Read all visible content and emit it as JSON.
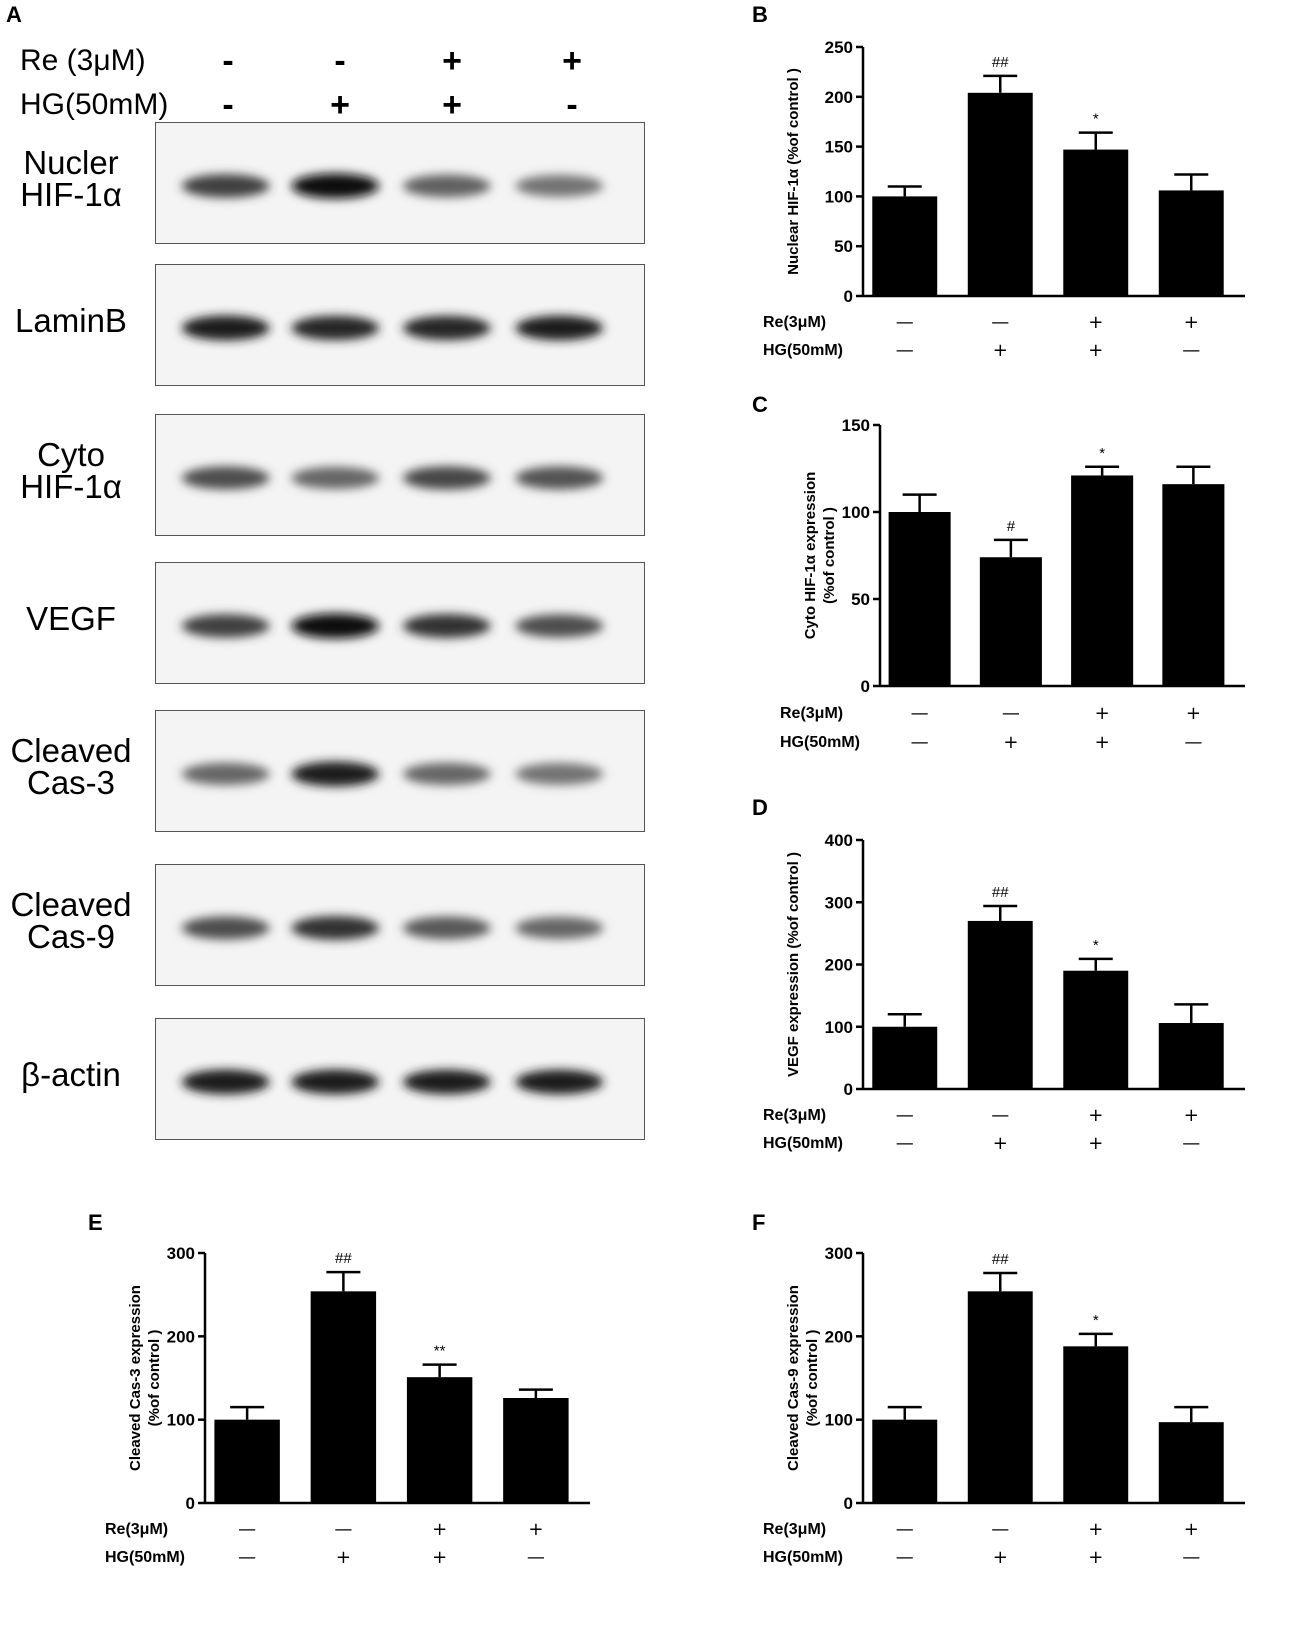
{
  "western_blot": {
    "panel_letter": "A",
    "conditions": [
      {
        "label": "Re (3μM)",
        "signs": [
          "-",
          "-",
          "+",
          "+"
        ]
      },
      {
        "label": "HG(50mM)",
        "signs": [
          "-",
          "+",
          "+",
          "-"
        ]
      }
    ],
    "blots": [
      {
        "label": "Nucler\nHIF-1α",
        "intensities": [
          0.75,
          0.95,
          0.62,
          0.55
        ]
      },
      {
        "label": "LaminB",
        "intensities": [
          0.9,
          0.85,
          0.85,
          0.88
        ]
      },
      {
        "label": "Cyto\nHIF-1α",
        "intensities": [
          0.7,
          0.6,
          0.72,
          0.68
        ]
      },
      {
        "label": "VEGF",
        "intensities": [
          0.75,
          0.95,
          0.8,
          0.7
        ]
      },
      {
        "label": "Cleaved\nCas-3",
        "intensities": [
          0.6,
          0.9,
          0.6,
          0.55
        ]
      },
      {
        "label": "Cleaved\nCas-9",
        "intensities": [
          0.7,
          0.8,
          0.65,
          0.6
        ]
      },
      {
        "label": "β-actin",
        "intensities": [
          0.9,
          0.9,
          0.88,
          0.88
        ]
      }
    ]
  },
  "condition_rows": [
    {
      "label": "Re(3μM)",
      "signs": [
        "—",
        "—",
        "+",
        "+"
      ]
    },
    {
      "label": "HG(50mM)",
      "signs": [
        "—",
        "+",
        "+",
        "—"
      ]
    }
  ],
  "chart_data": [
    {
      "panel": "B",
      "type": "bar",
      "ylabel": "Nuclear HIF-1α  (%of control )",
      "ylim": [
        0,
        250
      ],
      "yticks": [
        0,
        50,
        100,
        150,
        200,
        250
      ],
      "values": [
        100,
        204,
        147,
        106
      ],
      "errors": [
        10,
        17,
        17,
        16
      ],
      "annotations": [
        "",
        "##",
        "*",
        ""
      ]
    },
    {
      "panel": "C",
      "type": "bar",
      "ylabel": "Cyto HIF-1α  expression",
      "ylabel2": "(%of control )",
      "ylim": [
        0,
        150
      ],
      "yticks": [
        0,
        50,
        100,
        150
      ],
      "values": [
        100,
        74,
        121,
        116
      ],
      "errors": [
        10,
        10,
        5,
        10
      ],
      "annotations": [
        "",
        "#",
        "*",
        ""
      ]
    },
    {
      "panel": "D",
      "type": "bar",
      "ylabel": "VEGF expression (%of control )",
      "ylim": [
        0,
        400
      ],
      "yticks": [
        0,
        100,
        200,
        300,
        400
      ],
      "values": [
        100,
        270,
        190,
        106
      ],
      "errors": [
        20,
        24,
        19,
        30
      ],
      "annotations": [
        "",
        "##",
        "*",
        ""
      ]
    },
    {
      "panel": "E",
      "type": "bar",
      "ylabel": "Cleaved Cas-3 expression",
      "ylabel2": "(%of control )",
      "ylim": [
        0,
        300
      ],
      "yticks": [
        0,
        100,
        200,
        300
      ],
      "values": [
        100,
        254,
        151,
        126
      ],
      "errors": [
        15,
        23,
        15,
        10
      ],
      "annotations": [
        "",
        "##",
        "**",
        ""
      ]
    },
    {
      "panel": "F",
      "type": "bar",
      "ylabel": "Cleaved Cas-9 expression",
      "ylabel2": "(%of control )",
      "ylim": [
        0,
        300
      ],
      "yticks": [
        0,
        100,
        200,
        300
      ],
      "values": [
        100,
        254,
        188,
        97
      ],
      "errors": [
        15,
        22,
        15,
        18
      ],
      "annotations": [
        "",
        "##",
        "*",
        ""
      ]
    }
  ]
}
